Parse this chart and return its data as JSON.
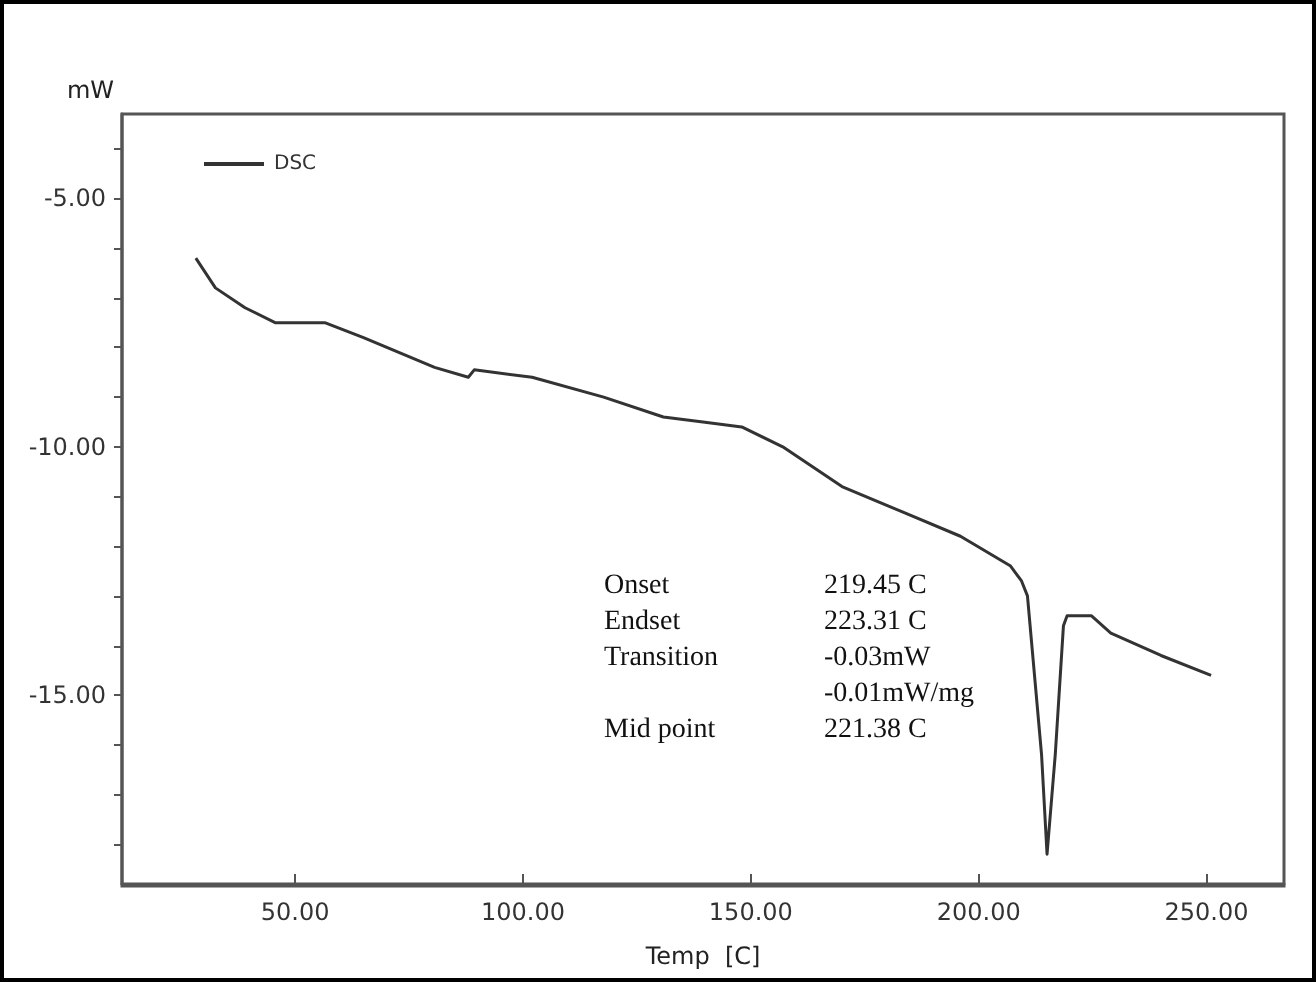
{
  "chart_data": {
    "type": "line",
    "xlabel": "Temp  [C]",
    "ylabel": "mW",
    "x": [
      28.2,
      32.5,
      39,
      45.6,
      56.5,
      65,
      80.6,
      88,
      89.3,
      102,
      117.7,
      130.8,
      139.5,
      148,
      157,
      170,
      183,
      196,
      207,
      209.4,
      210.7,
      213.8,
      215,
      216.8,
      218.6,
      219.4,
      224.7,
      229,
      240,
      251
    ],
    "series": [
      {
        "name": "DSC",
        "color": "#333333",
        "values": [
          -6.2,
          -6.8,
          -7.2,
          -7.5,
          -7.5,
          -7.8,
          -8.4,
          -8.6,
          -8.45,
          -8.6,
          -9.0,
          -9.4,
          -9.5,
          -9.6,
          -10.0,
          -10.8,
          -11.3,
          -11.8,
          -12.4,
          -12.7,
          -13.0,
          -16.2,
          -18.2,
          -16.2,
          -13.6,
          -13.4,
          -13.4,
          -13.75,
          -14.2,
          -14.6
        ]
      }
    ],
    "xlim": [
      12,
      267
    ],
    "ylim": [
      -18.8,
      -3.3
    ],
    "xticks": [
      {
        "value": 50,
        "label": "50.00"
      },
      {
        "value": 100,
        "label": "100.00"
      },
      {
        "value": 150,
        "label": "150.00"
      },
      {
        "value": 200,
        "label": "200.00"
      },
      {
        "value": 250,
        "label": "250.00"
      }
    ],
    "yticks": [
      {
        "value": -4,
        "label": null
      },
      {
        "value": -5,
        "label": "-5.00"
      },
      {
        "value": -6,
        "label": null
      },
      {
        "value": -7,
        "label": null
      },
      {
        "value": -8,
        "label": null
      },
      {
        "value": -9,
        "label": null
      },
      {
        "value": -10,
        "label": "-10.00"
      },
      {
        "value": -11,
        "label": null
      },
      {
        "value": -12,
        "label": null
      },
      {
        "value": -13,
        "label": null
      },
      {
        "value": -14,
        "label": null
      },
      {
        "value": -15,
        "label": "-15.00"
      },
      {
        "value": -16,
        "label": null
      },
      {
        "value": -17,
        "label": null
      },
      {
        "value": -18,
        "label": null
      }
    ],
    "annotations": [
      "Onset",
      "219.45 C",
      "Endset",
      "223.31 C",
      "Transition",
      "-0.03mW",
      "-0.01mW/mg",
      "Mid point",
      "221.38 C"
    ],
    "grid": false,
    "legend": "top left",
    "marker": "none",
    "line_style": "solid"
  }
}
